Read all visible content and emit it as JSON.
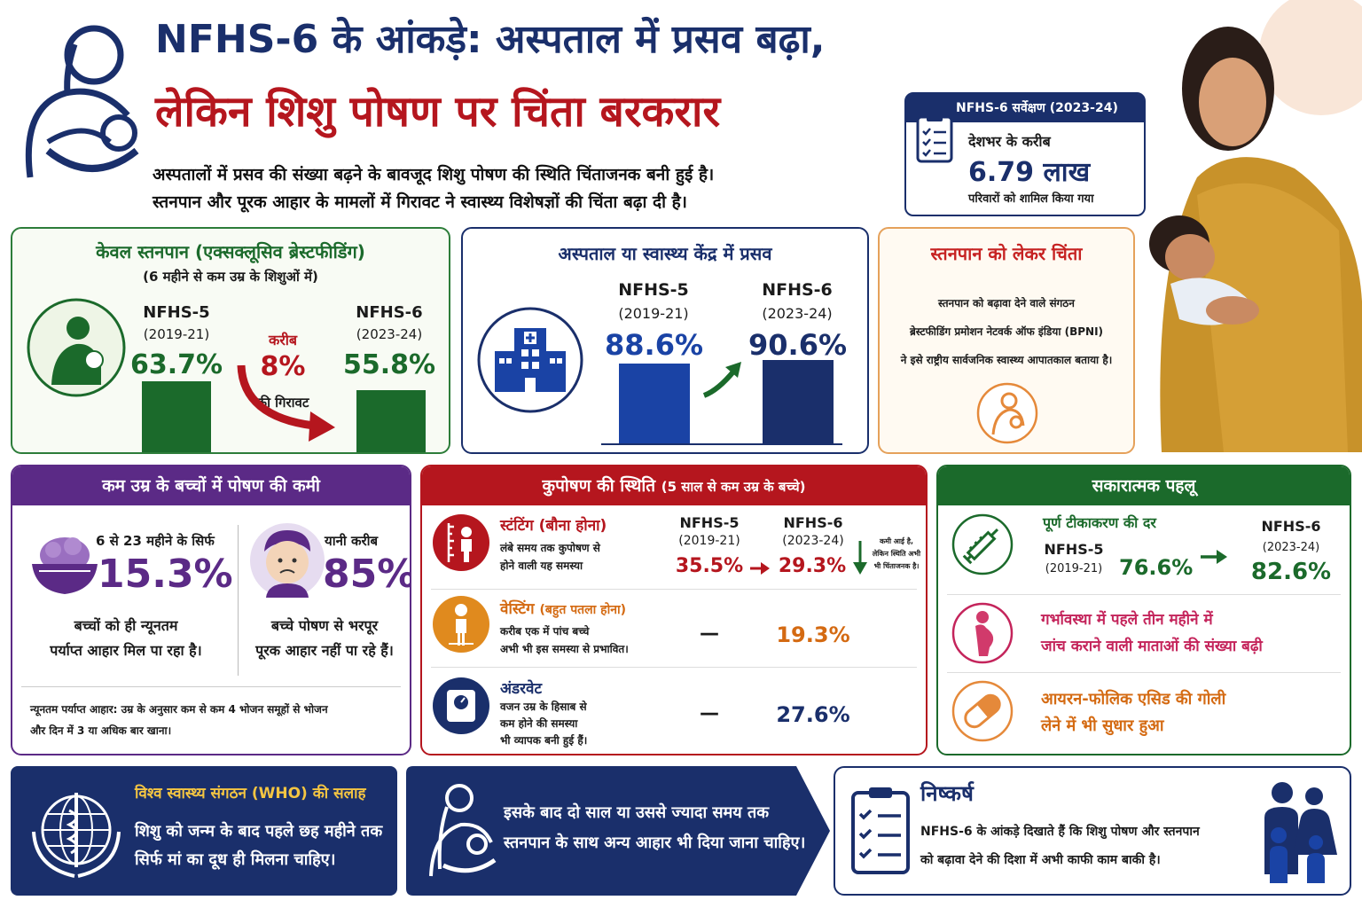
{
  "header": {
    "title_line1": "NFHS-6 के आंकड़े: अस्पताल में प्रसव बढ़ा,",
    "title_line2": "लेकिन शिशु पोषण पर चिंता बरकरार",
    "subtitle_line1": "अस्पतालों में प्रसव की संख्या बढ़ने के बावजूद शिशु पोषण की स्थिति चिंताजनक बनी हुई है।",
    "subtitle_line2": "स्तनपान और पूरक आहार के मामलों में गिरावट ने स्वास्थ्य विशेषज्ञों की चिंता बढ़ा दी है।"
  },
  "survey": {
    "label": "NFHS-6 सर्वेक्षण (2023-24)",
    "line1": "देशभर के करीब",
    "value": "6.79 लाख",
    "line2": "परिवारों को शामिल किया गया"
  },
  "breastfeeding": {
    "title": "केवल स्तनपान (एक्सक्लूसिव ब्रेस्टफीडिंग)",
    "subtitle": "(6 महीने से कम उम्र के शिशुओं में)",
    "left_label": "NFHS-5",
    "left_years": "(2019-21)",
    "left_value": "63.7%",
    "right_label": "NFHS-6",
    "right_years": "(2023-24)",
    "right_value": "55.8%",
    "change_prefix": "करीब",
    "change_value": "8%",
    "change_suffix": "की गिरावट",
    "values": [
      63.7,
      55.8
    ]
  },
  "hospital": {
    "title": "अस्पताल या स्वास्थ्य केंद्र में प्रसव",
    "left_label": "NFHS-5",
    "left_years": "(2019-21)",
    "left_value": "88.6%",
    "right_label": "NFHS-6",
    "right_years": "(2023-24)",
    "right_value": "90.6%",
    "values": [
      88.6,
      90.6
    ]
  },
  "concern": {
    "title": "स्तनपान को लेकर चिंता",
    "line1": "स्तनपान को बढ़ावा देने वाले संगठन",
    "line2": "ब्रेस्टफीडिंग प्रमोशन नेटवर्क ऑफ इंडिया (BPNI)",
    "line3": "ने इसे राष्ट्रीय सार्वजनिक स्वास्थ्य आपातकाल बताया है।"
  },
  "nutrition": {
    "title": "कम उम्र के बच्चों में पोषण की कमी",
    "left_top": "6 से 23 महीने के सिर्फ",
    "left_value": "15.3%",
    "left_bottom1": "बच्चों को ही न्यूनतम",
    "left_bottom2": "पर्याप्त आहार मिल पा रहा है।",
    "right_top": "यानी करीब",
    "right_value": "85%",
    "right_bottom1": "बच्चे पोषण से भरपूर",
    "right_bottom2": "पूरक आहार नहीं पा रहे हैं।",
    "note1": "न्यूनतम पर्याप्त आहार: उम्र के अनुसार कम से कम 4 भोजन समूहों से भोजन",
    "note2": "और दिन में 3 या अधिक बार खाना।"
  },
  "malnutrition": {
    "title": "कुपोषण की स्थिति",
    "title_sub": "(5 साल से कम उम्र के बच्चे)",
    "col1_label": "NFHS-5",
    "col1_years": "(2019-21)",
    "col2_label": "NFHS-6",
    "col2_years": "(2023-24)",
    "stunting_title": "स्टंटिंग (बौना होना)",
    "stunting_desc1": "लंबे समय तक कुपोषण से",
    "stunting_desc2": "होने वाली यह समस्या",
    "stunting_v5": "35.5%",
    "stunting_v6": "29.3%",
    "stunting_note1": "कमी आई है,",
    "stunting_note2": "लेकिन स्थिति अभी",
    "stunting_note3": "भी चिंताजनक है।",
    "wasting_title": "वेस्टिंग",
    "wasting_title_sub": "(बहुत पतला होना)",
    "wasting_desc1": "करीब एक में पांच बच्चे",
    "wasting_desc2": "अभी भी इस समस्या से प्रभावित।",
    "wasting_v5": "—",
    "wasting_v6": "19.3%",
    "under_title": "अंडरवेट",
    "under_desc1": "वजन उम्र के हिसाब से",
    "under_desc2": "कम होने की समस्या",
    "under_desc3": "भी व्यापक बनी हुई हैं।",
    "under_v5": "—",
    "under_v6": "27.6%"
  },
  "positive": {
    "title": "सकारात्मक पहलू",
    "vacc_title": "पूर्ण टीकाकरण की दर",
    "vacc_l5": "NFHS-5",
    "vacc_y5": "(2019-21)",
    "vacc_v5": "76.6%",
    "vacc_l6": "NFHS-6",
    "vacc_y6": "(2023-24)",
    "vacc_v6": "82.6%",
    "preg1": "गर्भावस्था में पहले तीन महीने में",
    "preg2": "जांच कराने वाली माताओं की संख्या बढ़ी",
    "iron1": "आयरन-फोलिक एसिड की गोली",
    "iron2": "लेने में भी सुधार हुआ"
  },
  "who": {
    "title": "विश्व स्वास्थ्य संगठन (WHO) की सलाह",
    "line1": "शिशु को जन्म के बाद पहले छह महीने तक",
    "line2": "सिर्फ मां का दूध ही मिलना चाहिए।",
    "advice1": "इसके बाद दो साल या उससे ज्यादा समय तक",
    "advice2": "स्तनपान के साथ अन्य आहार भी दिया जाना चाहिए।"
  },
  "conclusion": {
    "title": "निष्कर्ष",
    "line1": "NFHS-6 के आंकड़े दिखाते हैं कि शिशु पोषण और स्तनपान",
    "line2": "को बढ़ावा देने की दिशा में अभी काफी काम बाकी है।"
  },
  "colors": {
    "navy": "#1a2f6b",
    "red": "#b5161e",
    "green": "#1b6a2b",
    "blue": "#1a43a5",
    "orange": "#d46a12",
    "purple": "#5b2a86"
  }
}
